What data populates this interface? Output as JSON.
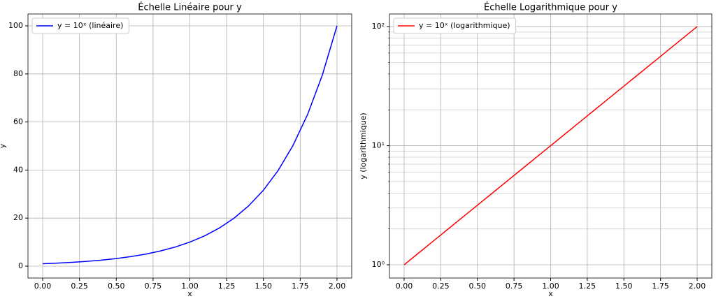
{
  "chart_data": [
    {
      "type": "line",
      "title": "Échelle Linéaire pour y",
      "xlabel": "x",
      "ylabel": "y",
      "log_y": false,
      "grid": true,
      "legend": "upper left",
      "x": [
        0,
        0.1,
        0.2,
        0.3,
        0.4,
        0.5,
        0.6,
        0.7,
        0.8,
        0.9,
        1,
        1.1,
        1.2,
        1.3,
        1.4,
        1.5,
        1.6,
        1.7,
        1.8,
        1.9,
        2
      ],
      "series": [
        {
          "name": "y = 10ˣ (linéaire)",
          "color": "#0000ff",
          "values": [
            1,
            1.2589,
            1.5849,
            1.9953,
            2.5119,
            3.1623,
            3.9811,
            5.0119,
            6.3096,
            7.9433,
            10,
            12.589,
            15.849,
            19.953,
            25.119,
            31.623,
            39.811,
            50.119,
            63.096,
            79.433,
            100
          ]
        }
      ],
      "xlim": [
        -0.1,
        2.1
      ],
      "xticks": [
        {
          "value": 0,
          "label": "0.00"
        },
        0.25,
        {
          "value": 0.5,
          "label": "0.50"
        },
        0.75,
        {
          "value": 1,
          "label": "1.00"
        },
        1.25,
        {
          "value": 1.5,
          "label": "1.50"
        },
        1.75,
        {
          "value": 2,
          "label": "2.00"
        }
      ],
      "ylim": [
        -4.95,
        104.95
      ],
      "yticks": [
        0,
        20,
        40,
        60,
        80,
        100
      ]
    },
    {
      "type": "line",
      "title": "Échelle Logarithmique pour y",
      "xlabel": "x",
      "ylabel": "y (logarithmique)",
      "log_y": true,
      "grid": true,
      "legend": "upper left",
      "x": [
        0,
        0.1,
        0.2,
        0.3,
        0.4,
        0.5,
        0.6,
        0.7,
        0.8,
        0.9,
        1,
        1.1,
        1.2,
        1.3,
        1.4,
        1.5,
        1.6,
        1.7,
        1.8,
        1.9,
        2
      ],
      "series": [
        {
          "name": "y = 10ˣ (logarithmique)",
          "color": "#ff0000",
          "values": [
            1,
            1.2589,
            1.5849,
            1.9953,
            2.5119,
            3.1623,
            3.9811,
            5.0119,
            6.3096,
            7.9433,
            10,
            12.589,
            15.849,
            19.953,
            25.119,
            31.623,
            39.811,
            50.119,
            63.096,
            79.433,
            100
          ]
        }
      ],
      "xlim": [
        -0.1,
        2.1
      ],
      "xticks": [
        {
          "value": 0,
          "label": "0.00"
        },
        0.25,
        {
          "value": 0.5,
          "label": "0.50"
        },
        0.75,
        {
          "value": 1,
          "label": "1.00"
        },
        1.25,
        {
          "value": 1.5,
          "label": "1.50"
        },
        1.75,
        {
          "value": 2,
          "label": "2.00"
        }
      ],
      "ylim": [
        0.774,
        127.6
      ],
      "yticks": [
        {
          "value": 1,
          "label": "10⁰"
        },
        {
          "value": 10,
          "label": "10¹"
        },
        {
          "value": 100,
          "label": "10²"
        }
      ],
      "yminorticks": [
        2,
        3,
        4,
        5,
        6,
        7,
        8,
        9,
        20,
        30,
        40,
        50,
        60,
        70,
        80,
        90
      ]
    }
  ]
}
